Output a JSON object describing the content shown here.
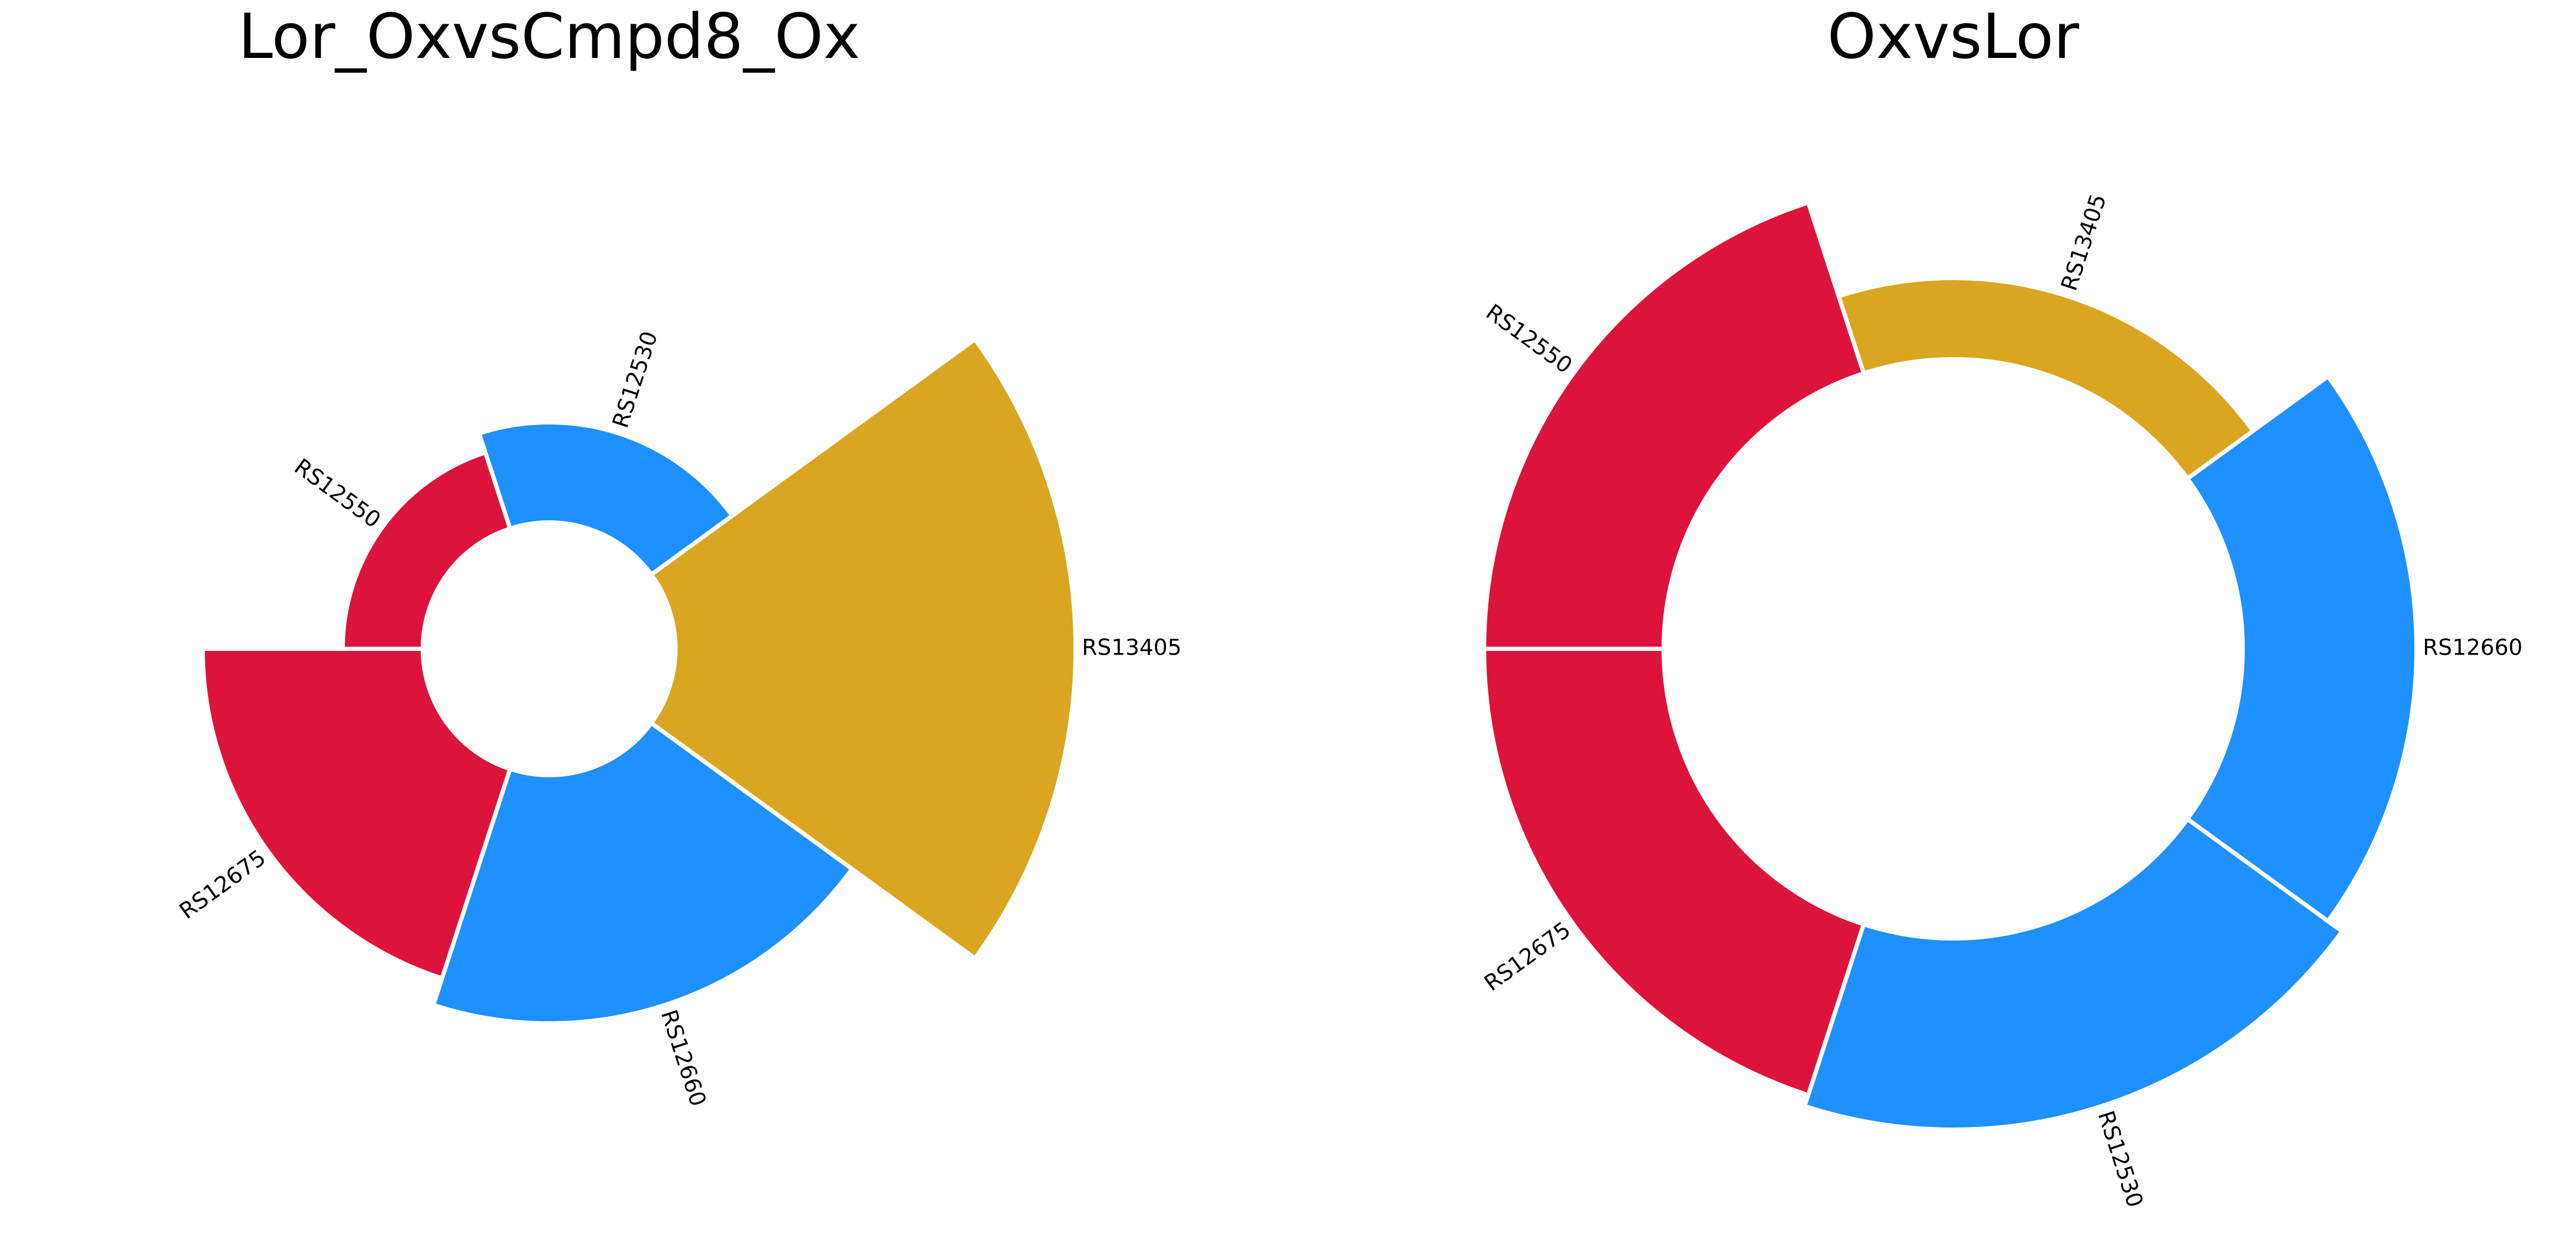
{
  "chart_data": [
    {
      "type": "bar",
      "polar": true,
      "title": "Lor_OxvsCmpd8_Ox",
      "categories": [
        "RS13405",
        "RS12530",
        "RS12550",
        "RS12675",
        "RS12660"
      ],
      "values": [
        1.0,
        0.25,
        0.2,
        0.55,
        0.62
      ],
      "colors": [
        "#daa520",
        "#1e90ff",
        "#dc143c",
        "#dc143c",
        "#1e90ff"
      ]
    },
    {
      "type": "bar",
      "polar": true,
      "title": "OxvsLor",
      "categories": [
        "RS12660",
        "RS13405",
        "RS12550",
        "RS12675",
        "RS12530"
      ],
      "values": [
        0.6,
        0.28,
        0.62,
        0.62,
        0.66
      ],
      "colors": [
        "#1e90ff",
        "#daa520",
        "#dc143c",
        "#dc143c",
        "#1e90ff"
      ]
    }
  ]
}
